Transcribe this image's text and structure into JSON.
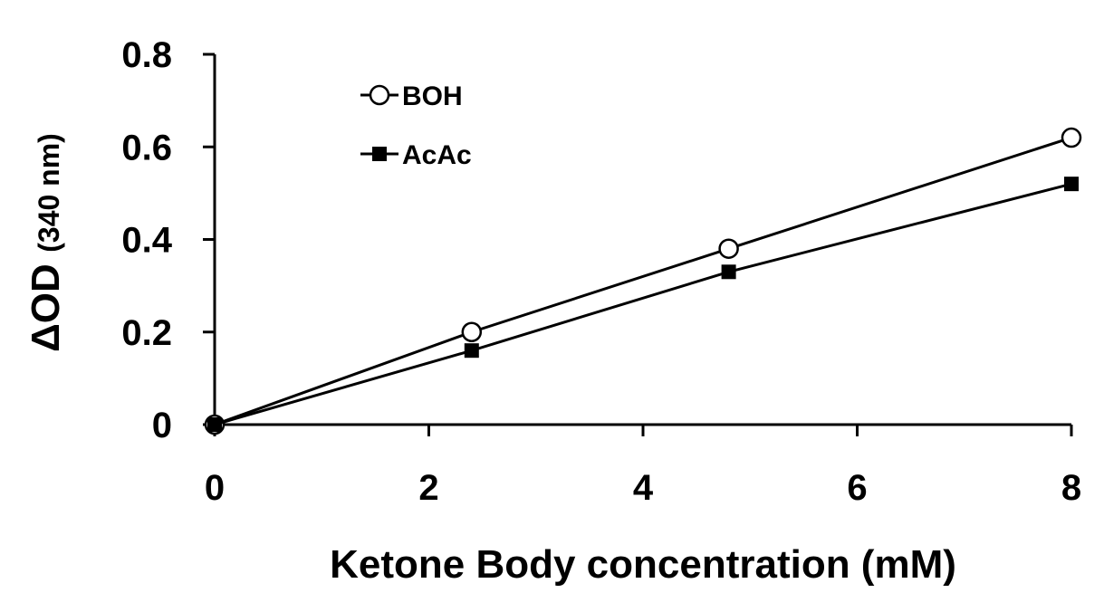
{
  "chart_data": {
    "type": "line",
    "title": "",
    "xlabel": "Ketone Body concentration (mM)",
    "ylabel_main": "ΔOD",
    "ylabel_sub": "(340 nm)",
    "xlim": [
      0,
      8
    ],
    "ylim": [
      0,
      0.8
    ],
    "xticks": [
      0,
      2,
      4,
      6,
      8
    ],
    "xtick_labels": [
      "0",
      "2",
      "4",
      "6",
      "8"
    ],
    "yticks": [
      0,
      0.2,
      0.4,
      0.6,
      0.8
    ],
    "ytick_labels": [
      "0",
      "0.2",
      "0.4",
      "0.6",
      "0.8"
    ],
    "grid": false,
    "legend_position": "top-left",
    "series": [
      {
        "name": "BOH",
        "marker": "open-circle",
        "color": "#000000",
        "x": [
          0,
          2.4,
          4.8,
          8
        ],
        "y": [
          0,
          0.2,
          0.38,
          0.62
        ]
      },
      {
        "name": "AcAc",
        "marker": "filled-square",
        "color": "#000000",
        "x": [
          0,
          2.4,
          4.8,
          8
        ],
        "y": [
          0,
          0.16,
          0.33,
          0.52
        ]
      }
    ]
  }
}
